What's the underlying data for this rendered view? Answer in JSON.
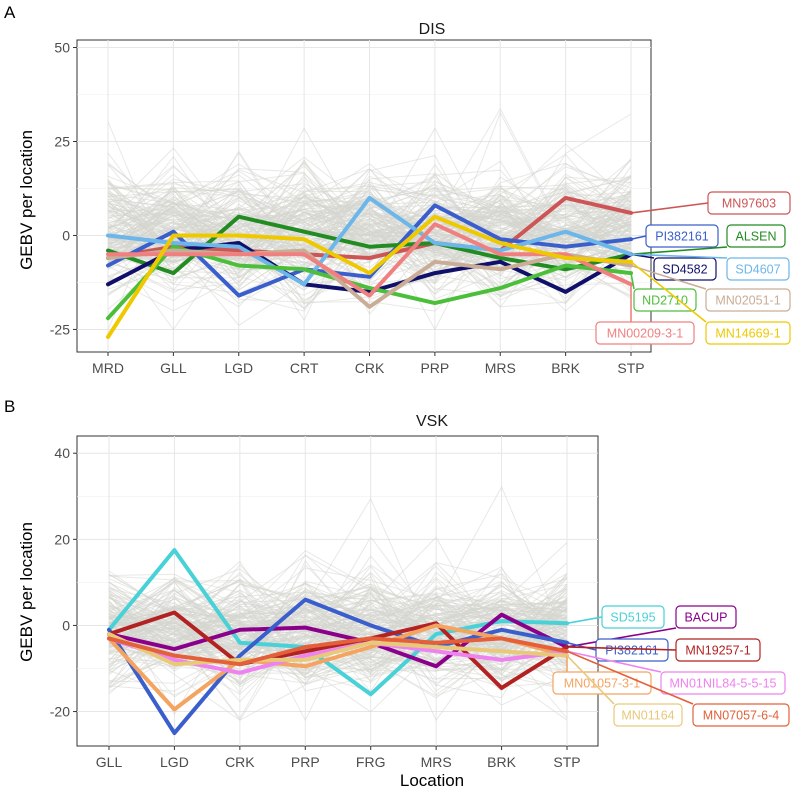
{
  "panels": [
    {
      "letter": "A",
      "title": "DIS"
    },
    {
      "letter": "B",
      "title": "VSK"
    }
  ],
  "xlabel": "Location",
  "ylabel": "GEBV per location",
  "chart_data": [
    {
      "type": "line",
      "panel": "A",
      "title": "DIS",
      "xlabel": "",
      "ylabel": "GEBV per location",
      "categories": [
        "MRD",
        "GLL",
        "LGD",
        "CRT",
        "CRK",
        "PRP",
        "MRS",
        "BRK",
        "STP"
      ],
      "yticks": [
        -25,
        0,
        25,
        50
      ],
      "ylim": [
        -31,
        52
      ],
      "grid": true,
      "background_lines": "many grey lines (population GEBVs)",
      "series": [
        {
          "name": "MN97603",
          "color": "#cd5555",
          "values": [
            -6,
            -3,
            -4,
            -5,
            -6,
            -2,
            -4,
            10,
            6
          ]
        },
        {
          "name": "PI382161",
          "color": "#3a5fcd",
          "values": [
            -8,
            1,
            -16,
            -9,
            -11,
            8,
            -1,
            -3,
            -1
          ]
        },
        {
          "name": "ALSEN",
          "color": "#228b22",
          "values": [
            -4,
            -10,
            5,
            1,
            -3,
            -2,
            -6,
            -9,
            -5
          ]
        },
        {
          "name": "SD4582",
          "color": "#10106b",
          "values": [
            -13,
            -4,
            -2,
            -13,
            -15,
            -10,
            -7,
            -15,
            -5
          ]
        },
        {
          "name": "SD4607",
          "color": "#6cb6ea",
          "values": [
            0,
            -2,
            -3,
            -13,
            10,
            -2,
            -4,
            1,
            -5
          ]
        },
        {
          "name": "ND2710",
          "color": "#4cbf3a",
          "values": [
            -22,
            -3,
            -8,
            -9,
            -14,
            -18,
            -14,
            -8,
            -10
          ]
        },
        {
          "name": "MN02051-1",
          "color": "#c9ad96",
          "values": [
            -6,
            -4,
            -5,
            -4,
            -19,
            -7,
            -9,
            -5,
            -8
          ]
        },
        {
          "name": "MN00209-3-1",
          "color": "#f08080",
          "values": [
            -5,
            -5,
            -5,
            -5,
            -16,
            3,
            -5,
            -5,
            -13
          ]
        },
        {
          "name": "MN14669-1",
          "color": "#eec900",
          "values": [
            -27,
            0,
            0,
            -1,
            -10,
            5,
            -2,
            -6,
            -7
          ]
        }
      ]
    },
    {
      "type": "line",
      "panel": "B",
      "title": "VSK",
      "xlabel": "Location",
      "ylabel": "GEBV per location",
      "categories": [
        "GLL",
        "LGD",
        "CRK",
        "PRP",
        "FRG",
        "MRS",
        "BRK",
        "STP"
      ],
      "yticks": [
        -20,
        0,
        20,
        40
      ],
      "ylim": [
        -28,
        44
      ],
      "grid": true,
      "background_lines": "many grey lines (population GEBVs)",
      "series": [
        {
          "name": "SD5195",
          "color": "#48d1d6",
          "values": [
            -1,
            17.5,
            -4,
            -5,
            -16,
            -2,
            1,
            0.5
          ]
        },
        {
          "name": "BACUP",
          "color": "#8b008b",
          "values": [
            -2,
            -5.5,
            -1,
            -0.5,
            -4,
            -9.5,
            2.5,
            -5
          ]
        },
        {
          "name": "PI382161",
          "color": "#3a5fcd",
          "values": [
            -1,
            -25,
            -7,
            6,
            0,
            -5,
            -1,
            -4
          ]
        },
        {
          "name": "MN19257-1",
          "color": "#b22222",
          "values": [
            -2,
            3,
            -9,
            -6,
            -3,
            0.5,
            -14.5,
            -5
          ]
        },
        {
          "name": "MN01057-3-1",
          "color": "#f4a460",
          "values": [
            -3,
            -19.5,
            -8,
            -9.5,
            -5,
            0,
            -3,
            -7
          ]
        },
        {
          "name": "MN01NIL84-5-5-15",
          "color": "#ee82ee",
          "values": [
            -3,
            -8,
            -11,
            -7,
            -4,
            -6,
            -8,
            -6
          ]
        },
        {
          "name": "MN01164",
          "color": "#e8c97a",
          "values": [
            -2,
            -9,
            -8,
            -8,
            -4,
            -5,
            -6,
            -7
          ]
        },
        {
          "name": "MN07057-6-4",
          "color": "#e3603a",
          "values": [
            -3,
            -7,
            -9,
            -5,
            -3,
            -4,
            -3,
            -6
          ]
        }
      ]
    }
  ]
}
